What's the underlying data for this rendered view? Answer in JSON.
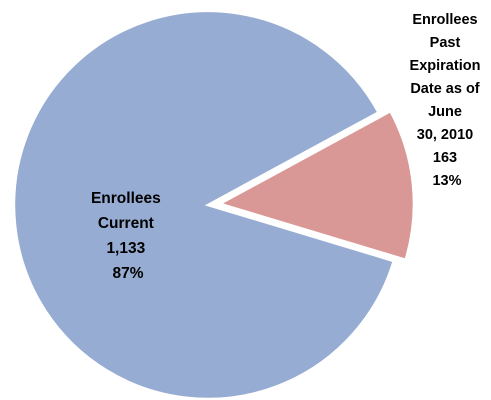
{
  "chart_data": {
    "type": "pie",
    "title": "",
    "slices": [
      {
        "label_lines": [
          "Enrollees",
          "Current",
          "1,133",
          "87%"
        ],
        "category": "Enrollees Current",
        "value": 1133,
        "percent_label": "87%",
        "color": "#96ACD2"
      },
      {
        "label_lines": [
          "Enrollees",
          "Past",
          "Expiration",
          "Date as of",
          "June",
          "30, 2010",
          "163",
          "13%"
        ],
        "category": "Enrollees Past Expiration Date as of June 30, 2010",
        "value": 163,
        "percent_label": "13%",
        "color": "#D99795"
      }
    ],
    "colors": {
      "outline": "#ffffff",
      "background": "#ffffff"
    },
    "exploded_slice": 1,
    "legend": "none"
  }
}
